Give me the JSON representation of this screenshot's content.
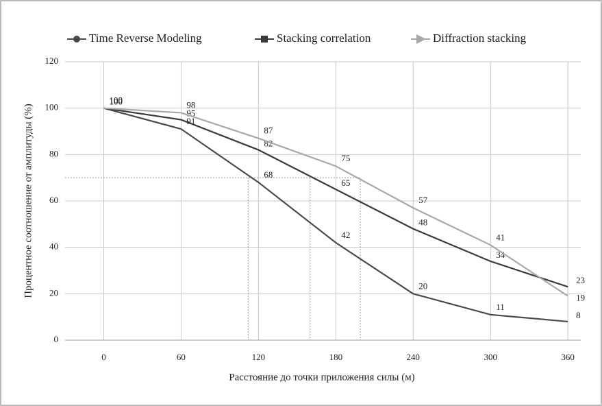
{
  "chart_data": {
    "type": "line",
    "x_label": "Расстояние до точки приложения силы (м)",
    "y_label": "Процентное соотношение от амплитуды (%)",
    "x": [
      0,
      60,
      120,
      180,
      240,
      300,
      360
    ],
    "series": [
      {
        "name": "Time Reverse Modeling",
        "color": "#4a4a4a",
        "marker": "circle",
        "values": [
          100,
          91,
          68,
          42,
          20,
          11,
          8
        ]
      },
      {
        "name": "Stacking correlation",
        "color": "#3a3a3a",
        "marker": "square",
        "values": [
          100,
          95,
          82,
          65,
          48,
          34,
          23
        ]
      },
      {
        "name": "Diffraction stacking",
        "color": "#a8a8a8",
        "marker": "triangle",
        "values": [
          100,
          98,
          87,
          75,
          57,
          41,
          19
        ]
      }
    ],
    "reference_lines": {
      "y": 70,
      "x": [
        112,
        160,
        199
      ]
    },
    "xlim": [
      -30,
      370
    ],
    "xticks": [
      0,
      60,
      120,
      180,
      240,
      300,
      360
    ],
    "ylim": [
      0,
      120
    ],
    "yticks": [
      0,
      20,
      40,
      60,
      80,
      100,
      120
    ],
    "grid": true,
    "legend": "top"
  }
}
